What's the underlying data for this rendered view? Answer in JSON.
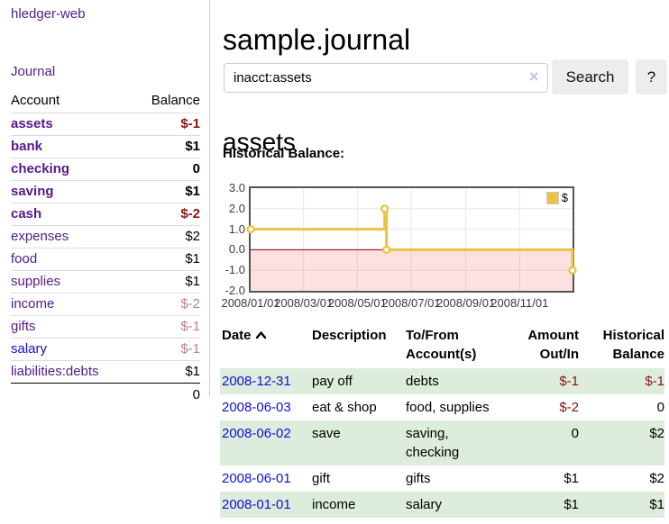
{
  "colors": {
    "purple_link": "#551a8b",
    "blue_link": "#0f0fd6",
    "negative_strong": "#8b1515",
    "negative_faded": "#c08282",
    "stripe_green": "#ddecdc",
    "series_gold": "#edc240",
    "zero_line_red": "#8b0000",
    "negative_region_pink": "rgba(255,0,0,0.12)",
    "plot_border": "#545454"
  },
  "sidebar": {
    "brand": "hledger-web",
    "journal_link": "Journal",
    "accounts": {
      "header_account": "Account",
      "header_balance": "Balance",
      "rows": [
        {
          "name": "assets",
          "balance": "$-1",
          "level": 1,
          "bold": true,
          "name_color": "purple",
          "balance_color": "neg-strong"
        },
        {
          "name": "bank",
          "balance": "$1",
          "level": 2,
          "bold": true,
          "name_color": "purple",
          "balance_color": "normal"
        },
        {
          "name": "checking",
          "balance": "0",
          "level": 3,
          "bold": true,
          "name_color": "purple",
          "balance_color": "normal"
        },
        {
          "name": "saving",
          "balance": "$1",
          "level": 3,
          "bold": true,
          "name_color": "purple",
          "balance_color": "normal"
        },
        {
          "name": "cash",
          "balance": "$-2",
          "level": 2,
          "bold": true,
          "name_color": "purple",
          "balance_color": "neg-strong"
        },
        {
          "name": "expenses",
          "balance": "$2",
          "level": 1,
          "bold": false,
          "name_color": "purple",
          "balance_color": "normal"
        },
        {
          "name": "food",
          "balance": "$1",
          "level": 2,
          "bold": false,
          "name_color": "purple",
          "balance_color": "normal"
        },
        {
          "name": "supplies",
          "balance": "$1",
          "level": 2,
          "bold": false,
          "name_color": "purple",
          "balance_color": "normal"
        },
        {
          "name": "income",
          "balance": "$-2",
          "level": 1,
          "bold": false,
          "name_color": "purple",
          "balance_color": "neg-faded"
        },
        {
          "name": "gifts",
          "balance": "$-1",
          "level": 2,
          "bold": false,
          "name_color": "purple",
          "balance_color": "neg-faded"
        },
        {
          "name": "salary",
          "balance": "$-1",
          "level": 2,
          "bold": false,
          "name_color": "blue",
          "balance_color": "neg-faded"
        },
        {
          "name": "liabilities:debts",
          "balance": "$1",
          "level": 1,
          "bold": false,
          "name_color": "purple",
          "balance_color": "normal"
        }
      ],
      "total": "0"
    }
  },
  "main": {
    "title": "sample.journal",
    "search": {
      "value": "inacct:assets",
      "clear_icon": "×",
      "search_button": "Search",
      "help_button": "?"
    },
    "account_title": "assets",
    "chart_heading": "Historical Balance:"
  },
  "chart_data": {
    "type": "line",
    "step": true,
    "title": "Historical Balance",
    "xlabel": "",
    "ylabel": "",
    "ylim": [
      -2,
      3
    ],
    "x_start": "2008-01-01",
    "x_end": "2008-12-31",
    "yticks": [
      3.0,
      2.0,
      1.0,
      0.0,
      -1.0,
      -2.0
    ],
    "ytick_labels": [
      "3.0",
      "2.0",
      "1.0",
      "0.0",
      "-1.0",
      "-2.0"
    ],
    "xticks": [
      {
        "date": "2008-01-01",
        "label": "2008/01/01"
      },
      {
        "date": "2008-03-01",
        "label": "2008/03/01"
      },
      {
        "date": "2008-05-01",
        "label": "2008/05/01"
      },
      {
        "date": "2008-07-01",
        "label": "2008/07/01"
      },
      {
        "date": "2008-09-01",
        "label": "2008/09/01"
      },
      {
        "date": "2008-11-01",
        "label": "2008/11/01"
      }
    ],
    "legend": {
      "label": "$",
      "position": "top-right"
    },
    "grid": true,
    "series": [
      {
        "name": "$",
        "color": "#edc240",
        "points": [
          {
            "date": "2008-01-01",
            "value": 1
          },
          {
            "date": "2008-06-01",
            "value": 2
          },
          {
            "date": "2008-06-03",
            "value": 0
          },
          {
            "date": "2008-12-31",
            "value": -1
          }
        ]
      }
    ],
    "negative_region": {
      "from": 0,
      "to": -2
    },
    "zero_line": true
  },
  "register": {
    "headers": {
      "date": "Date",
      "description": "Description",
      "account": "To/From Account(s)",
      "amount": "Amount Out/In",
      "balance": "Historical Balance"
    },
    "rows": [
      {
        "date": "2008-12-31",
        "description": "pay off",
        "account": "debts",
        "amount": "$-1",
        "balance": "$-1"
      },
      {
        "date": "2008-06-03",
        "description": "eat & shop",
        "account": "food, supplies",
        "amount": "$-2",
        "balance": "0"
      },
      {
        "date": "2008-06-02",
        "description": "save",
        "account": "saving, checking",
        "amount": "0",
        "balance": "$2"
      },
      {
        "date": "2008-06-01",
        "description": "gift",
        "account": "gifts",
        "amount": "$1",
        "balance": "$2"
      },
      {
        "date": "2008-01-01",
        "description": "income",
        "account": "salary",
        "amount": "$1",
        "balance": "$1"
      }
    ]
  }
}
